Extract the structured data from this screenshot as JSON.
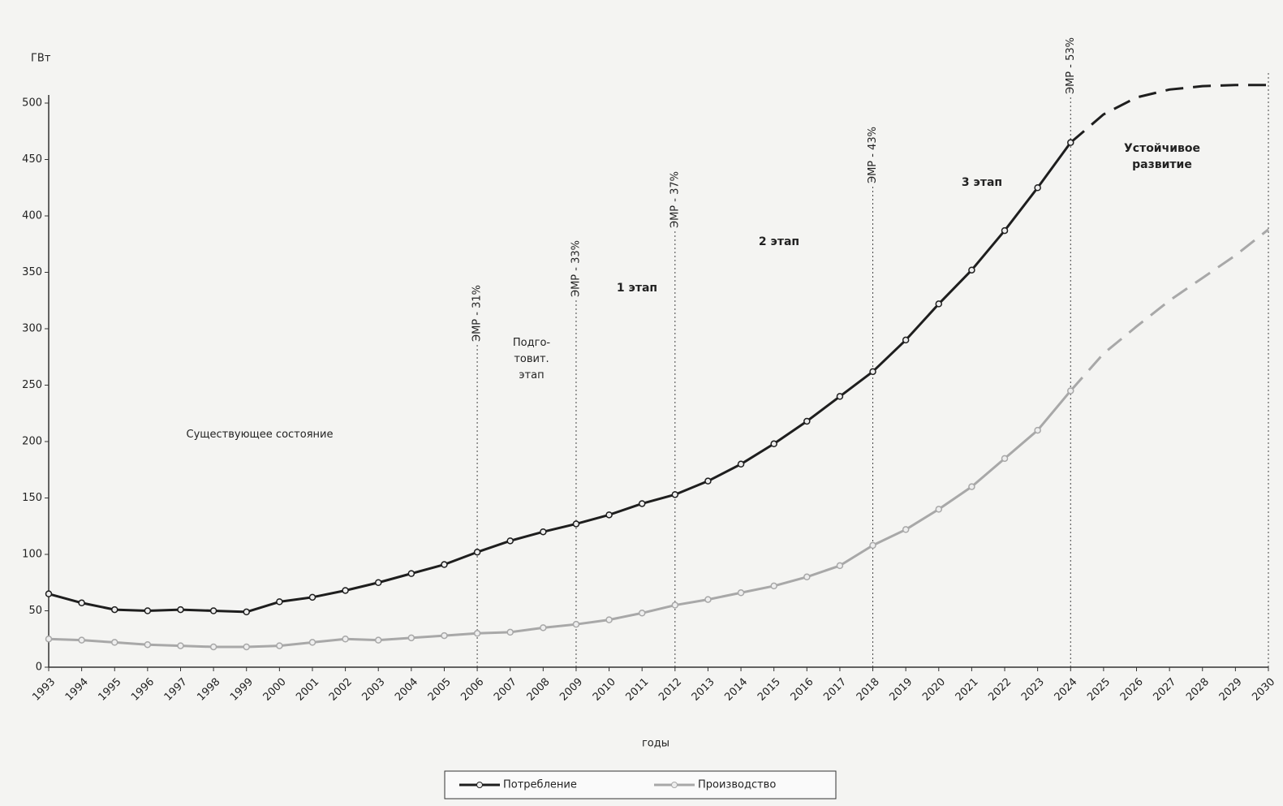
{
  "chart_data": {
    "type": "line",
    "y_label": "ГВт",
    "x_label": "годы",
    "x": [
      1993,
      1994,
      1995,
      1996,
      1997,
      1998,
      1999,
      2000,
      2001,
      2002,
      2003,
      2004,
      2005,
      2006,
      2007,
      2008,
      2009,
      2010,
      2011,
      2012,
      2013,
      2014,
      2015,
      2016,
      2017,
      2018,
      2019,
      2020,
      2021,
      2022,
      2023,
      2024,
      2025,
      2026,
      2027,
      2028,
      2029,
      2030
    ],
    "xlim": [
      1993,
      2030
    ],
    "xticks": [
      1993,
      1994,
      1995,
      1996,
      1997,
      1998,
      1999,
      2000,
      2001,
      2002,
      2003,
      2004,
      2005,
      2006,
      2007,
      2008,
      2009,
      2010,
      2011,
      2012,
      2013,
      2014,
      2015,
      2016,
      2017,
      2018,
      2019,
      2020,
      2021,
      2022,
      2023,
      2024,
      2025,
      2026,
      2027,
      2028,
      2029,
      2030
    ],
    "ylim": [
      0,
      500
    ],
    "yticks": [
      0,
      50,
      100,
      150,
      200,
      250,
      300,
      350,
      400,
      450,
      500
    ],
    "forecast_start": 2024,
    "series": [
      {
        "name": "Потребление",
        "color": "#1e1e1e",
        "values": [
          65,
          57,
          51,
          50,
          51,
          50,
          49,
          58,
          62,
          68,
          75,
          83,
          91,
          102,
          112,
          120,
          127,
          135,
          145,
          153,
          165,
          180,
          198,
          218,
          240,
          262,
          290,
          322,
          352,
          387,
          425,
          465,
          490,
          505,
          512,
          515,
          516,
          516
        ]
      },
      {
        "name": "Производство",
        "color": "#a8a8a8",
        "values": [
          25,
          24,
          22,
          20,
          19,
          18,
          18,
          19,
          22,
          25,
          24,
          26,
          28,
          30,
          31,
          35,
          38,
          42,
          48,
          55,
          60,
          66,
          72,
          80,
          90,
          108,
          122,
          140,
          160,
          185,
          210,
          245,
          278,
          302,
          325,
          345,
          365,
          388
        ]
      }
    ],
    "reference_lines": [
      {
        "x": 2006,
        "label": "ЭМР - 31%"
      },
      {
        "x": 2009,
        "label": "ЭМР - 33%"
      },
      {
        "x": 2012,
        "label": "ЭМР - 37%"
      },
      {
        "x": 2018,
        "label": "ЭМР - 43%"
      },
      {
        "x": 2024,
        "label": "ЭМР - 53%"
      }
    ],
    "annotations": [
      {
        "lines": [
          "Существующее состояние"
        ]
      },
      {
        "lines": [
          "Подго-",
          "товит.",
          "этап"
        ]
      },
      {
        "lines": [
          "1 этап"
        ]
      },
      {
        "lines": [
          "2 этап"
        ]
      },
      {
        "lines": [
          "3 этап"
        ]
      },
      {
        "lines": [
          "Устойчивое",
          "развитие"
        ]
      }
    ]
  }
}
